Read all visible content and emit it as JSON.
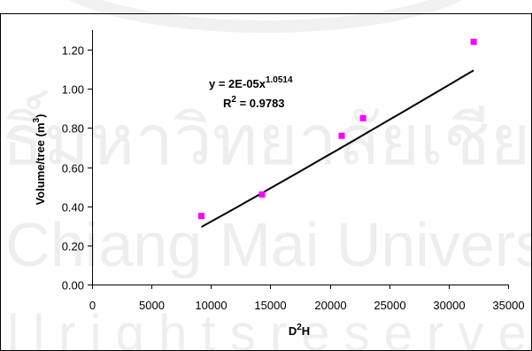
{
  "watermark": {
    "line1": "ลิขสิทธิ์มหาวิทยาลัยเชียงใหม่",
    "line2": "by Chiang Mai University",
    "line3": "A l l r i g h t s r e s e r v e d"
  },
  "chart_data": {
    "type": "scatter",
    "title": "",
    "xlabel": {
      "base": "D",
      "sup": "2",
      "tail": "H"
    },
    "ylabel": {
      "base": "Volume/tree (m",
      "sup": "3",
      "tail": ")"
    },
    "xlim": [
      0,
      35000
    ],
    "ylim": [
      0,
      1.3
    ],
    "x_ticks": [
      0,
      5000,
      10000,
      15000,
      20000,
      25000,
      30000,
      35000
    ],
    "x_tick_labels": [
      "0",
      "5000",
      "10000",
      "15000",
      "20000",
      "25000",
      "30000",
      "35000"
    ],
    "y_ticks": [
      0,
      0.2,
      0.4,
      0.6,
      0.8,
      1.0,
      1.2
    ],
    "y_tick_labels": [
      "0.00",
      "0.20",
      "0.40",
      "0.60",
      "0.80",
      "1.00",
      "1.20"
    ],
    "grid": false,
    "legend": "none",
    "series": [
      {
        "marker": "square",
        "color": "#ff00ff",
        "points": [
          {
            "x": 9200,
            "y": 0.35
          },
          {
            "x": 14300,
            "y": 0.46
          },
          {
            "x": 21000,
            "y": 0.76
          },
          {
            "x": 22800,
            "y": 0.85
          },
          {
            "x": 32100,
            "y": 1.24
          }
        ]
      }
    ],
    "trendline": {
      "type": "power",
      "a": 2e-05,
      "b": 1.0514,
      "x_range": [
        9200,
        32100
      ],
      "color": "#000000",
      "equation": {
        "prefix": "y = 2E-05x",
        "exponent": "1.0514"
      },
      "r_squared": {
        "label": "R",
        "sup": "2",
        "value": " = 0.9783"
      }
    }
  }
}
